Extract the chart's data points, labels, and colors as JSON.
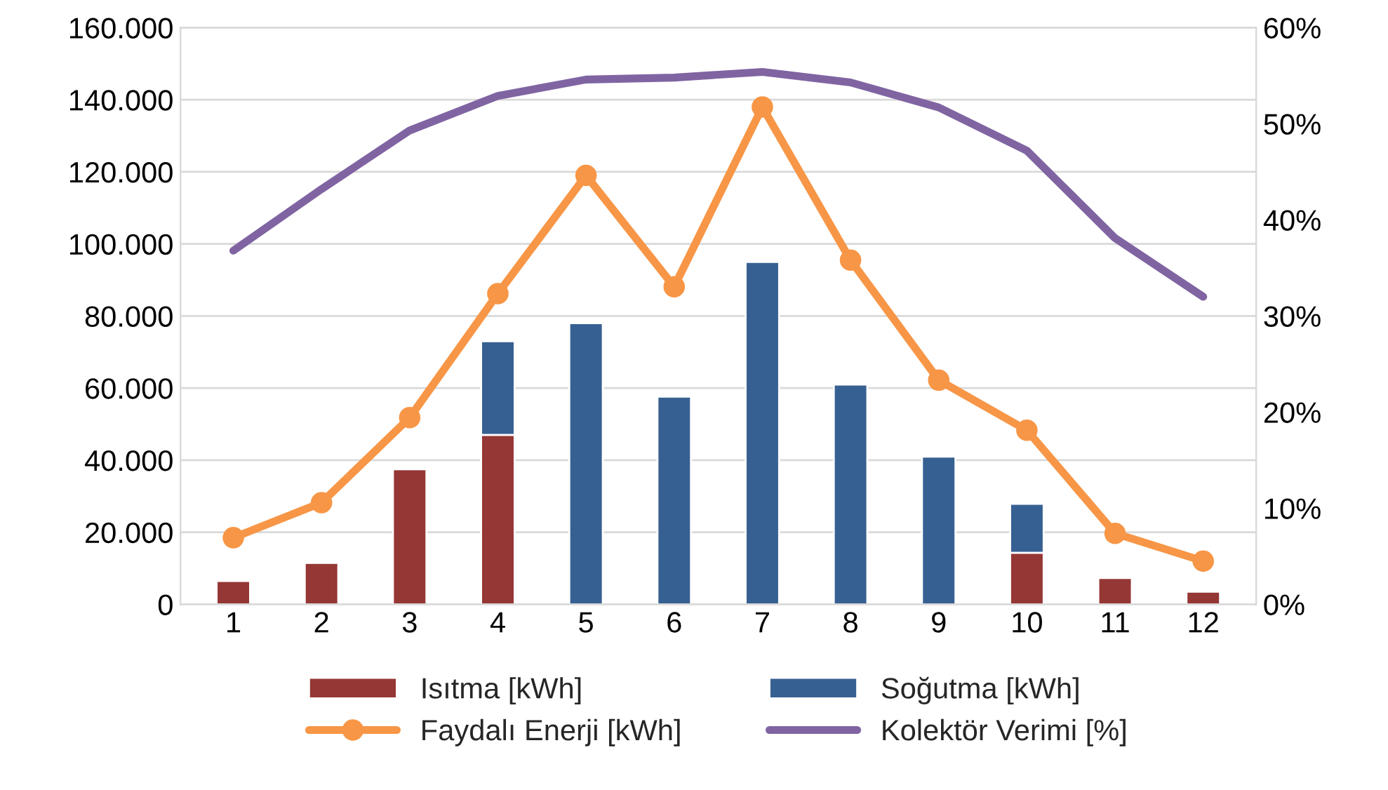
{
  "chart_data": {
    "type": "bar",
    "stacked": true,
    "categories": [
      "1",
      "2",
      "3",
      "4",
      "5",
      "6",
      "7",
      "8",
      "9",
      "10",
      "11",
      "12"
    ],
    "series": [
      {
        "name": "Isıtma [kWh]",
        "color": "#953735",
        "values": [
          6500,
          11500,
          37500,
          47000,
          null,
          null,
          null,
          null,
          null,
          14300,
          7300,
          3500
        ]
      },
      {
        "name": "Soğutma [kWh]",
        "color": "#376092",
        "values": [
          null,
          null,
          null,
          26000,
          78000,
          57600,
          95000,
          61000,
          41000,
          13600,
          null,
          null
        ]
      },
      {
        "name": "Faydalı Enerji [kWh]",
        "type": "line",
        "color": "#f79646",
        "marker": "circle",
        "values": [
          18500,
          28200,
          51800,
          86200,
          119000,
          88100,
          138000,
          95500,
          62200,
          48300,
          19700,
          12000
        ]
      },
      {
        "name": "Kolektör Verimi [%]",
        "type": "line",
        "color": "#8064a2",
        "marker": "none",
        "axis": "y2",
        "values": [
          36.8,
          43.2,
          49.3,
          52.9,
          54.6,
          54.8,
          55.4,
          54.3,
          51.7,
          47.2,
          38.1,
          32.0
        ]
      }
    ],
    "ylim": [
      0,
      160000
    ],
    "yticks": [
      {
        "value": 0,
        "label": "0"
      },
      {
        "value": 20000,
        "label": "20.000"
      },
      {
        "value": 40000,
        "label": "40.000"
      },
      {
        "value": 60000,
        "label": "60.000"
      },
      {
        "value": 80000,
        "label": "80.000"
      },
      {
        "value": 100000,
        "label": "100.000"
      },
      {
        "value": 120000,
        "label": "120.000"
      },
      {
        "value": 140000,
        "label": "140.000"
      },
      {
        "value": 160000,
        "label": "160.000"
      }
    ],
    "y2lim": [
      0,
      60
    ],
    "y2ticks": [
      {
        "value": 0,
        "label": "0%"
      },
      {
        "value": 10,
        "label": "10%"
      },
      {
        "value": 20,
        "label": "20%"
      },
      {
        "value": 30,
        "label": "30%"
      },
      {
        "value": 40,
        "label": "40%"
      },
      {
        "value": 50,
        "label": "50%"
      },
      {
        "value": 60,
        "label": "60%"
      }
    ],
    "grid": "y",
    "legend": "bottom"
  }
}
